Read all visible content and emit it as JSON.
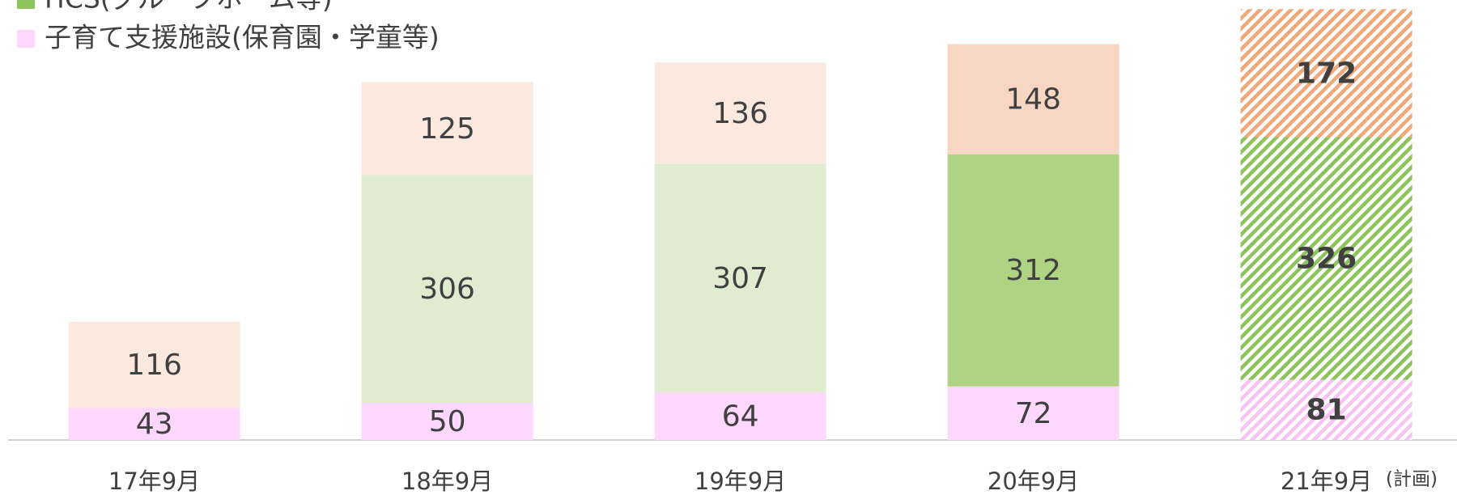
{
  "chart_data": {
    "type": "stacked-bar",
    "categories": [
      "17年9月",
      "18年9月",
      "19年9月",
      "20年9月",
      "21年9月"
    ],
    "annotation": "(計画)",
    "hatched": [
      false,
      false,
      false,
      false,
      true
    ],
    "series": [
      {
        "name": "子育て支援施設(保育園・学童等)",
        "color": "#fdd7fd",
        "colors": [
          "#fdd7fd",
          "#fdd7fd",
          "#fdd7fd",
          "#fdd7fd",
          "#f7c3f3"
        ],
        "values": [
          43,
          50,
          64,
          72,
          81
        ]
      },
      {
        "name": "HCS(グループホーム等)",
        "color": "#8cc35a",
        "colors": [
          "#dfecd0",
          "#dfecd0",
          "#dfecd0",
          "#add383",
          "#8cc35a"
        ],
        "values": [
          null,
          306,
          307,
          312,
          326
        ]
      },
      {
        "color": "#f0a878",
        "colors": [
          "#fbe9e0",
          "#fbe9e0",
          "#fbe9e0",
          "#f7d7c3",
          "#f0a878"
        ],
        "values": [
          116,
          125,
          136,
          148,
          172
        ]
      }
    ]
  }
}
